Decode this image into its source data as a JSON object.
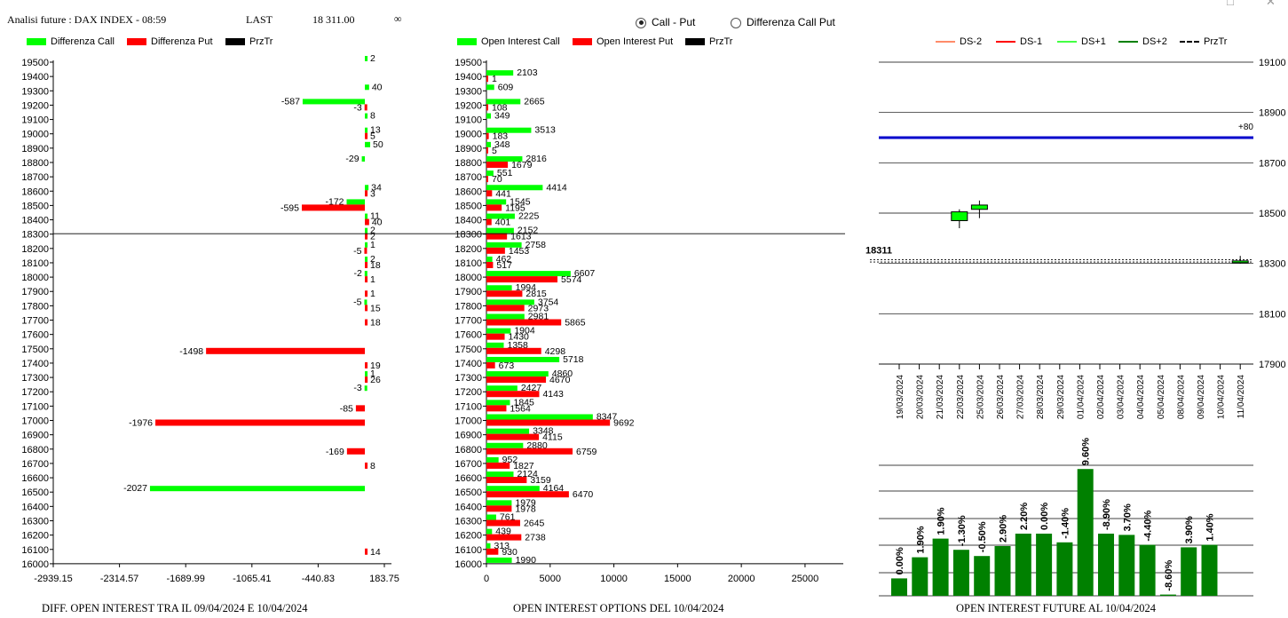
{
  "header": {
    "title": "Analisi future : DAX INDEX - 08:59",
    "last_label": "LAST",
    "last_value": "18 311.00",
    "infinity": "∞"
  },
  "options": {
    "call_put": "Call - Put",
    "diff_call_put": "Differenza Call Put",
    "selected": "call_put"
  },
  "window_controls": {
    "minimize": "□",
    "close": "✕"
  },
  "colors": {
    "green": "#00ff00",
    "red": "#ff0000",
    "black": "#000000",
    "blue": "#0000cc",
    "dark_green": "#008000",
    "ds_minus2": "#ff8c69",
    "ds_minus1": "#ff0000",
    "ds_plus1": "#44ff44",
    "ds_plus2": "#008000"
  },
  "chart_data": [
    {
      "type": "bar",
      "orientation": "horizontal",
      "title": "DIFF. OPEN INTEREST TRA IL 09/04/2024 E 10/04/2024",
      "legend": [
        "Differenza Call",
        "Differenza Put",
        "PrzTr"
      ],
      "categories": [
        19500,
        19400,
        19300,
        19200,
        19100,
        19000,
        18900,
        18800,
        18700,
        18600,
        18500,
        18400,
        18300,
        18200,
        18100,
        18000,
        17900,
        17800,
        17700,
        17600,
        17500,
        17400,
        17300,
        17200,
        17100,
        17000,
        16900,
        16800,
        16700,
        16600,
        16500,
        16400,
        16300,
        16200,
        16100,
        16000
      ],
      "series": [
        {
          "name": "Differenza Call",
          "values": [
            2,
            0,
            40,
            -587,
            8,
            13,
            50,
            -29,
            0,
            34,
            -172,
            11,
            2,
            1,
            2,
            -2,
            0,
            -5,
            0,
            0,
            0,
            0,
            1,
            -3,
            0,
            0,
            0,
            0,
            0,
            0,
            -2027,
            0,
            0,
            0,
            0,
            0
          ]
        },
        {
          "name": "Differenza Put",
          "values": [
            0,
            0,
            0,
            -3,
            0,
            5,
            0,
            0,
            0,
            3,
            -595,
            40,
            2,
            -5,
            18,
            1,
            1,
            15,
            18,
            0,
            -1498,
            19,
            26,
            0,
            -85,
            -1976,
            0,
            -169,
            8,
            0,
            0,
            0,
            0,
            0,
            14,
            0
          ]
        }
      ],
      "price_line": 18300,
      "xlim": [
        -2939.15,
        183.75
      ],
      "xticks": [
        "-2939.15",
        "-2314.57",
        "-1689.99",
        "-1065.41",
        "-440.83",
        "183.75"
      ],
      "ylim": [
        16000,
        19500
      ]
    },
    {
      "type": "bar",
      "orientation": "horizontal",
      "title": "OPEN INTEREST OPTIONS DEL 10/04/2024",
      "legend": [
        "Open Interest Call",
        "Open Interest Put",
        "PrzTr"
      ],
      "categories": [
        19500,
        19400,
        19300,
        19200,
        19100,
        19000,
        18900,
        18800,
        18700,
        18600,
        18500,
        18400,
        18300,
        18200,
        18100,
        18000,
        17900,
        17800,
        17700,
        17600,
        17500,
        17400,
        17300,
        17200,
        17100,
        17000,
        16900,
        16800,
        16700,
        16600,
        16500,
        16400,
        16300,
        16200,
        16100,
        16000
      ],
      "series": [
        {
          "name": "Open Interest Call",
          "values": [
            0,
            2103,
            609,
            2665,
            349,
            3513,
            348,
            2816,
            551,
            4414,
            1545,
            2225,
            2152,
            2758,
            462,
            6607,
            1994,
            3754,
            2981,
            1904,
            1358,
            5718,
            4860,
            2427,
            1845,
            8347,
            3348,
            2880,
            952,
            2124,
            4164,
            1979,
            761,
            439,
            313,
            1990
          ]
        },
        {
          "name": "Open Interest Put",
          "values": [
            0,
            1,
            0,
            108,
            0,
            183,
            5,
            1679,
            70,
            441,
            1195,
            401,
            1613,
            1453,
            517,
            5574,
            2815,
            2973,
            5865,
            1430,
            4298,
            673,
            4670,
            4143,
            1564,
            9692,
            4115,
            6759,
            1827,
            3159,
            6470,
            1978,
            2645,
            2738,
            930,
            0
          ]
        }
      ],
      "price_line": 18300,
      "xlim": [
        0,
        28000
      ],
      "xticks": [
        "0",
        "5000",
        "10000",
        "15000",
        "20000",
        "25000"
      ],
      "ylim": [
        16000,
        19500
      ]
    },
    {
      "type": "candlestick",
      "legend": [
        "DS-2",
        "DS-1",
        "DS+1",
        "DS+2",
        "PrzTr"
      ],
      "dates": [
        "19/03/2024",
        "20/03/2024",
        "21/03/2024",
        "22/03/2024",
        "25/03/2024",
        "26/03/2024",
        "27/03/2024",
        "28/03/2024",
        "29/03/2024",
        "01/04/2024",
        "02/04/2024",
        "03/04/2024",
        "04/04/2024",
        "05/04/2024",
        "08/04/2024",
        "09/04/2024",
        "10/04/2024",
        "11/04/2024"
      ],
      "candles": [
        {
          "date": "22/03/2024",
          "open": 18505,
          "close": 18470,
          "high": 18515,
          "low": 18440
        },
        {
          "date": "25/03/2024",
          "open": 18515,
          "close": 18532,
          "high": 18550,
          "low": 18480
        },
        {
          "date": "11/04/2024",
          "open": 18310,
          "close": 18305,
          "high": 18330,
          "low": 18300
        }
      ],
      "ylim": [
        17900,
        19100
      ],
      "yticks": [
        "19100",
        "18900",
        "18700",
        "18500",
        "18300",
        "18100",
        "17900"
      ],
      "blue_line": 18800,
      "blue_line_label": "+80",
      "last_price": 18311,
      "last_label": "18311"
    },
    {
      "type": "bar",
      "title": "OPEN INTEREST FUTURE AL 10/04/2024",
      "categories": [
        "19/03/2024",
        "20/03/2024",
        "21/03/2024",
        "22/03/2024",
        "25/03/2024",
        "26/03/2024",
        "27/03/2024",
        "28/03/2024",
        "29/03/2024",
        "01/04/2024",
        "02/04/2024",
        "03/04/2024",
        "04/04/2024",
        "05/04/2024",
        "08/04/2024",
        "09/04/2024",
        "10/04/2024"
      ],
      "labels": [
        "0.00%",
        "1.90%",
        "1.90%",
        "-1.30%",
        "-0.50%",
        "2.90%",
        "2.20%",
        "0.00%",
        "-1.40%",
        "9.60%",
        "-8.90%",
        "3.70%",
        "-4.40%",
        "-8.60%",
        "3.90%",
        "1.40%",
        ""
      ],
      "values": [
        1.4,
        3.1,
        4.6,
        3.7,
        3.2,
        4.0,
        5.0,
        5.0,
        4.3,
        10.2,
        5.0,
        4.9,
        4.1,
        0.1,
        3.9,
        4.1,
        null
      ],
      "grid": true
    }
  ]
}
